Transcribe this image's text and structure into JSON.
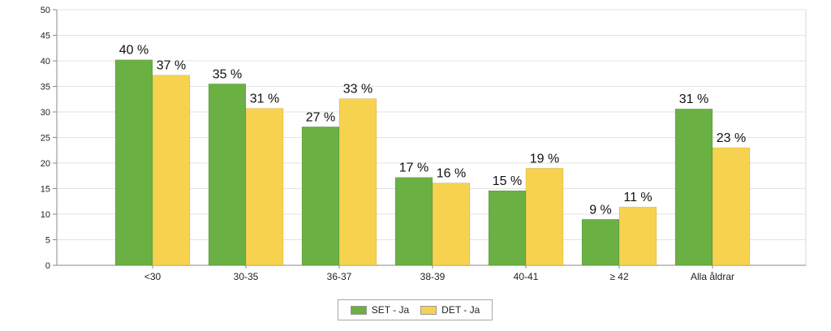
{
  "chart_data": {
    "type": "bar",
    "categories": [
      "<30",
      "30-35",
      "36-37",
      "38-39",
      "40-41",
      "≥ 42",
      "Alla åldrar"
    ],
    "series": [
      {
        "name": "SET - Ja",
        "color": "#6ab043",
        "values": [
          40,
          35,
          27,
          17,
          15,
          9,
          31
        ],
        "labels": [
          "40 %",
          "35 %",
          "27 %",
          "17 %",
          "15 %",
          "9 %",
          "31 %"
        ],
        "plotted": [
          40.2,
          35.5,
          27.1,
          17.2,
          14.6,
          9.0,
          30.6
        ]
      },
      {
        "name": "DET - Ja",
        "color": "#f7d24e",
        "values": [
          37,
          31,
          33,
          16,
          19,
          11,
          23
        ],
        "labels": [
          "37 %",
          "31 %",
          "33 %",
          "16 %",
          "19 %",
          "11 %",
          "23 %"
        ],
        "plotted": [
          37.2,
          30.7,
          32.6,
          16.1,
          19.0,
          11.4,
          23.0
        ]
      }
    ],
    "yticks": [
      "0",
      "5",
      "10",
      "15",
      "20",
      "25",
      "30",
      "35",
      "40",
      "45",
      "50"
    ],
    "ylim": [
      0,
      50
    ],
    "grid": true,
    "legend_position": "bottom-center"
  },
  "legend": {
    "items": [
      {
        "label": "SET - Ja",
        "color": "#6ab043"
      },
      {
        "label": "DET - Ja",
        "color": "#f7d24e"
      }
    ]
  }
}
